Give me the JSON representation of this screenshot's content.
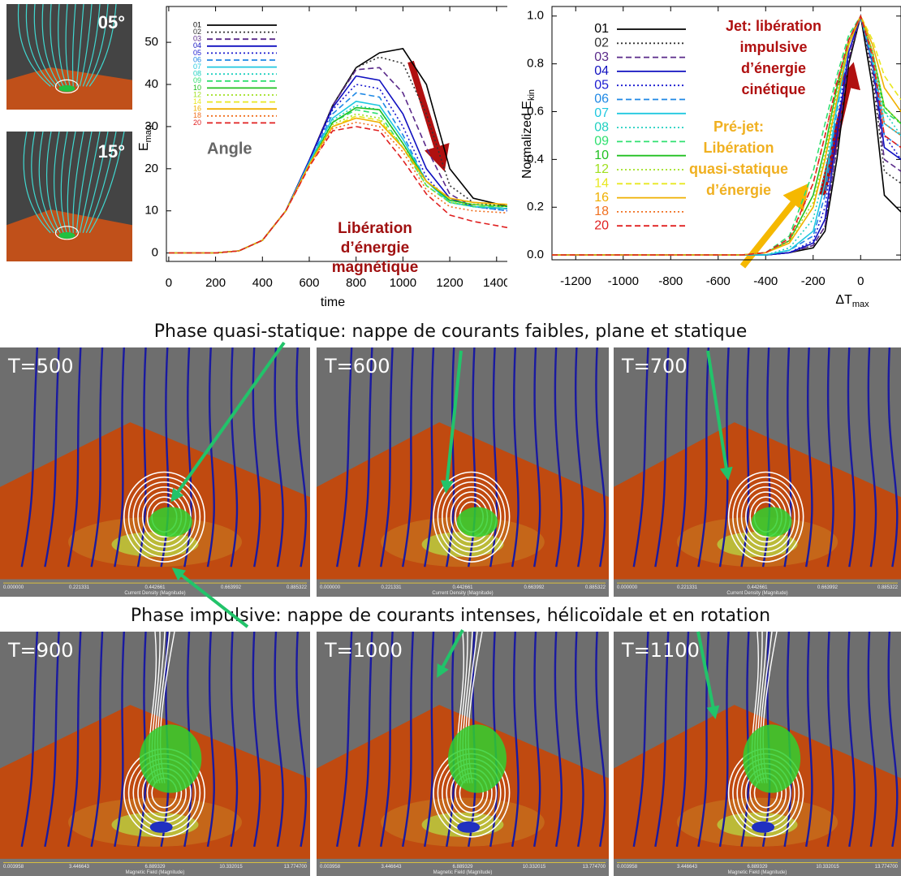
{
  "thumbnails": [
    {
      "label": "05°"
    },
    {
      "label": "15°"
    }
  ],
  "chart_data": [
    {
      "type": "line",
      "x_label": "time",
      "y_label": "E",
      "y_label_sub": "mag",
      "xlim": [
        -10,
        1470
      ],
      "ylim": [
        -2,
        58.5
      ],
      "xticks": [
        0,
        200,
        400,
        600,
        800,
        1000,
        1200,
        1400
      ],
      "yticks": [
        0,
        10,
        20,
        30,
        40,
        50
      ],
      "legend": "upper left",
      "x": [
        0,
        200,
        300,
        400,
        500,
        600,
        700,
        800,
        900,
        1000,
        1100,
        1200,
        1300,
        1450
      ],
      "series": [
        {
          "name": "01",
          "color": "#000000",
          "dash": "solid",
          "values": [
            0,
            0,
            0.5,
            3,
            10,
            22,
            35,
            44,
            47.5,
            48.5,
            40,
            20,
            13,
            11
          ]
        },
        {
          "name": "02",
          "color": "#333333",
          "dash": "dotted",
          "values": [
            0,
            0,
            0.5,
            3,
            10,
            22,
            35,
            44,
            46.5,
            45,
            33,
            16,
            12,
            11
          ]
        },
        {
          "name": "03",
          "color": "#5a2a8a",
          "dash": "dashed",
          "values": [
            0,
            0,
            0.5,
            3,
            10,
            22,
            35,
            43.5,
            44,
            38,
            25,
            14,
            11,
            10.5
          ]
        },
        {
          "name": "04",
          "color": "#1010c0",
          "dash": "solid",
          "values": [
            0,
            0,
            0.5,
            3,
            10,
            22,
            34.5,
            42,
            41,
            33,
            20,
            13,
            11,
            10.5
          ]
        },
        {
          "name": "05",
          "color": "#1a1ad0",
          "dash": "dotted",
          "values": [
            0,
            0,
            0.5,
            3,
            10,
            22,
            34,
            40,
            39,
            30,
            18,
            12,
            11,
            10
          ]
        },
        {
          "name": "06",
          "color": "#1e88e5",
          "dash": "dashed",
          "values": [
            0,
            0,
            0.5,
            3,
            10,
            21.5,
            33,
            38,
            37,
            28,
            17,
            12,
            11,
            10
          ]
        },
        {
          "name": "07",
          "color": "#20c8e0",
          "dash": "solid",
          "values": [
            0,
            0,
            0.5,
            3,
            10,
            21.5,
            32,
            36,
            35,
            27,
            17,
            12,
            11,
            10.5
          ]
        },
        {
          "name": "08",
          "color": "#20d0c0",
          "dash": "dotted",
          "values": [
            0,
            0,
            0.5,
            3,
            10,
            21,
            31.5,
            35,
            34,
            26,
            16,
            12,
            11,
            10.5
          ]
        },
        {
          "name": "09",
          "color": "#30e070",
          "dash": "dashed",
          "values": [
            0,
            0,
            0.5,
            3,
            10,
            21,
            31,
            34,
            33,
            25,
            16,
            12,
            11,
            11
          ]
        },
        {
          "name": "10",
          "color": "#20c020",
          "dash": "solid",
          "values": [
            0,
            0,
            0.5,
            3,
            10,
            21,
            31,
            34.5,
            34,
            26,
            17,
            12.5,
            11.5,
            11
          ]
        },
        {
          "name": "12",
          "color": "#a0e020",
          "dash": "dotted",
          "values": [
            0,
            0,
            0.5,
            3,
            10,
            21,
            30.5,
            33,
            32,
            25,
            16,
            12,
            11.5,
            11
          ]
        },
        {
          "name": "14",
          "color": "#e8e820",
          "dash": "dashed",
          "values": [
            0,
            0,
            0.5,
            3,
            10,
            21,
            30,
            32.5,
            31.5,
            25,
            17,
            13,
            12,
            11.5
          ]
        },
        {
          "name": "16",
          "color": "#f0b000",
          "dash": "solid",
          "values": [
            0,
            0,
            0.5,
            3,
            10,
            21,
            30,
            32,
            31,
            25,
            17,
            13,
            12,
            11.5
          ]
        },
        {
          "name": "18",
          "color": "#f07020",
          "dash": "dotted",
          "values": [
            0,
            0,
            0.5,
            3,
            10,
            20.5,
            29.5,
            31,
            30,
            24,
            15,
            11,
            10,
            9.5
          ]
        },
        {
          "name": "20",
          "color": "#e02020",
          "dash": "dashed",
          "values": [
            0,
            0,
            0.5,
            3,
            10,
            20.5,
            29,
            30,
            29,
            22,
            14,
            9,
            7.5,
            6
          ]
        }
      ],
      "annotations": {
        "angle": "Angle",
        "release": [
          "Libération",
          "d’énergie",
          "magnétique"
        ]
      }
    },
    {
      "type": "line",
      "x_label": "ΔT",
      "x_label_sub": "max",
      "y_label": "Normalized E",
      "y_label_sub": "kin",
      "xlim": [
        -1300,
        170
      ],
      "ylim": [
        -0.02,
        1.04
      ],
      "xticks": [
        -1200,
        -1000,
        -800,
        -600,
        -400,
        -200,
        0
      ],
      "yticks": [
        {
          "value": 0,
          "label": "0.0"
        },
        0.2,
        0.4,
        0.6,
        0.8,
        {
          "value": 1,
          "label": "1.0"
        }
      ],
      "legend": "upper left",
      "x": [
        -1300,
        -800,
        -500,
        -400,
        -300,
        -200,
        -150,
        -100,
        -50,
        0,
        50,
        100,
        170
      ],
      "series": [
        {
          "name": "01",
          "color": "#000000",
          "dash": "solid",
          "values": [
            0,
            0,
            0,
            0,
            0.01,
            0.03,
            0.1,
            0.4,
            0.8,
            1.0,
            0.7,
            0.25,
            0.18
          ]
        },
        {
          "name": "02",
          "color": "#333333",
          "dash": "dotted",
          "values": [
            0,
            0,
            0,
            0,
            0.01,
            0.04,
            0.12,
            0.45,
            0.82,
            1.0,
            0.75,
            0.35,
            0.3
          ]
        },
        {
          "name": "03",
          "color": "#5a2a8a",
          "dash": "dashed",
          "values": [
            0,
            0,
            0,
            0,
            0.01,
            0.04,
            0.12,
            0.45,
            0.82,
            1.0,
            0.78,
            0.4,
            0.35
          ]
        },
        {
          "name": "04",
          "color": "#1010c0",
          "dash": "solid",
          "values": [
            0,
            0,
            0,
            0,
            0.01,
            0.05,
            0.15,
            0.5,
            0.85,
            1.0,
            0.8,
            0.45,
            0.4
          ]
        },
        {
          "name": "05",
          "color": "#1a1ad0",
          "dash": "dotted",
          "values": [
            0,
            0,
            0,
            0,
            0.01,
            0.06,
            0.2,
            0.55,
            0.85,
            1.0,
            0.8,
            0.5,
            0.4
          ]
        },
        {
          "name": "06",
          "color": "#1e88e5",
          "dash": "dashed",
          "values": [
            0,
            0,
            0,
            0,
            0.02,
            0.08,
            0.25,
            0.6,
            0.88,
            1.0,
            0.8,
            0.5,
            0.45
          ]
        },
        {
          "name": "07",
          "color": "#20c8e0",
          "dash": "solid",
          "values": [
            0,
            0,
            0,
            0,
            0.02,
            0.1,
            0.3,
            0.62,
            0.88,
            1.0,
            0.82,
            0.55,
            0.5
          ]
        },
        {
          "name": "08",
          "color": "#20d0c0",
          "dash": "dotted",
          "values": [
            0,
            0,
            0,
            0,
            0.03,
            0.15,
            0.35,
            0.65,
            0.9,
            1.0,
            0.82,
            0.6,
            0.5
          ]
        },
        {
          "name": "09",
          "color": "#30e070",
          "dash": "dashed",
          "values": [
            0,
            0,
            0,
            0.01,
            0.08,
            0.35,
            0.55,
            0.75,
            0.92,
            1.0,
            0.85,
            0.6,
            0.55
          ]
        },
        {
          "name": "10",
          "color": "#20c020",
          "dash": "solid",
          "values": [
            0,
            0,
            0,
            0.01,
            0.06,
            0.25,
            0.45,
            0.7,
            0.9,
            1.0,
            0.85,
            0.62,
            0.55
          ]
        },
        {
          "name": "12",
          "color": "#a0e020",
          "dash": "dotted",
          "values": [
            0,
            0,
            0,
            0.01,
            0.06,
            0.22,
            0.42,
            0.68,
            0.9,
            1.0,
            0.85,
            0.62,
            0.55
          ]
        },
        {
          "name": "14",
          "color": "#e8e820",
          "dash": "dashed",
          "values": [
            0,
            0,
            0,
            0.01,
            0.05,
            0.2,
            0.4,
            0.65,
            0.88,
            1.0,
            0.9,
            0.75,
            0.65
          ]
        },
        {
          "name": "16",
          "color": "#f0b000",
          "dash": "solid",
          "values": [
            0,
            0,
            0,
            0.01,
            0.05,
            0.2,
            0.4,
            0.65,
            0.88,
            1.0,
            0.88,
            0.7,
            0.6
          ]
        },
        {
          "name": "18",
          "color": "#f07020",
          "dash": "dotted",
          "values": [
            0,
            0,
            0,
            0.01,
            0.06,
            0.3,
            0.5,
            0.72,
            0.9,
            1.0,
            0.85,
            0.55,
            0.5
          ]
        },
        {
          "name": "20",
          "color": "#e02020",
          "dash": "dashed",
          "values": [
            0,
            0,
            0,
            0.01,
            0.07,
            0.3,
            0.5,
            0.72,
            0.9,
            1.0,
            0.83,
            0.5,
            0.45
          ]
        }
      ],
      "annotations": {
        "jet": [
          "Jet: libération",
          "impulsive",
          "d’énergie",
          "cinétique"
        ],
        "prejet": [
          "Pré-jet:",
          "Libération",
          "quasi-statique",
          "d’énergie"
        ]
      }
    }
  ],
  "captions": [
    "Phase quasi-statique: nappe de courants faibles, plane et statique",
    "Phase impulsive: nappe de courants intenses, hélicoïdale et en rotation"
  ],
  "panels": [
    {
      "label": "T=500"
    },
    {
      "label": "T=600"
    },
    {
      "label": "T=700"
    },
    {
      "label": "T=900"
    },
    {
      "label": "T=1000"
    },
    {
      "label": "T=1100"
    }
  ],
  "scales": [
    {
      "title": "Current Density (Magnitude)",
      "labels": [
        "0.000000",
        "0.221331",
        "0.442661",
        "0.663992",
        "0.885322"
      ]
    },
    {
      "title": "Magnetic Field (Magnitude)",
      "labels": [
        "0.003958",
        "3.446643",
        "6.889329",
        "10.332015",
        "13.774700"
      ]
    }
  ]
}
